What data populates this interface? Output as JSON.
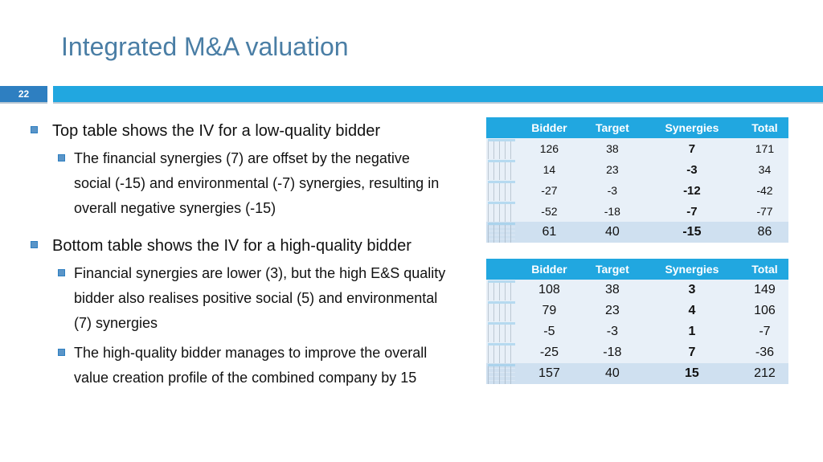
{
  "slide": {
    "title": "Integrated M&A valuation",
    "number": "22"
  },
  "bullets": [
    {
      "text": "Top table shows the IV for a low-quality bidder",
      "sub": [
        "The financial synergies (7) are offset by the negative social (-15) and environmental (-7) synergies, resulting in overall negative synergies (-15)"
      ]
    },
    {
      "text": "Bottom table shows the IV for a high-quality bidder",
      "sub": [
        "Financial synergies are lower (3), but the high E&S quality bidder also realises positive social (5) and environmental (7) synergies",
        "The high-quality bidder manages to improve the overall value creation profile of the combined company by 15"
      ]
    }
  ],
  "tables": {
    "headers": [
      "Bidder",
      "Target",
      "Synergies",
      "Total"
    ],
    "top": [
      [
        "126",
        "38",
        "7",
        "171"
      ],
      [
        "14",
        "23",
        "-3",
        "34"
      ],
      [
        "-27",
        "-3",
        "-12",
        "-42"
      ],
      [
        "-52",
        "-18",
        "-7",
        "-77"
      ],
      [
        "61",
        "40",
        "-15",
        "86"
      ]
    ],
    "bottom": [
      [
        "108",
        "38",
        "3",
        "149"
      ],
      [
        "79",
        "23",
        "4",
        "106"
      ],
      [
        "-5",
        "-3",
        "1",
        "-7"
      ],
      [
        "-25",
        "-18",
        "7",
        "-36"
      ],
      [
        "157",
        "40",
        "15",
        "212"
      ]
    ]
  },
  "colors": {
    "title": "#4a7ea5",
    "band": "#21a7e0",
    "slide_number_bg": "#2e7fc1",
    "table_header": "#21a7e0",
    "table_row": "#e8f0f8",
    "table_total_row": "#cfe0f0"
  }
}
